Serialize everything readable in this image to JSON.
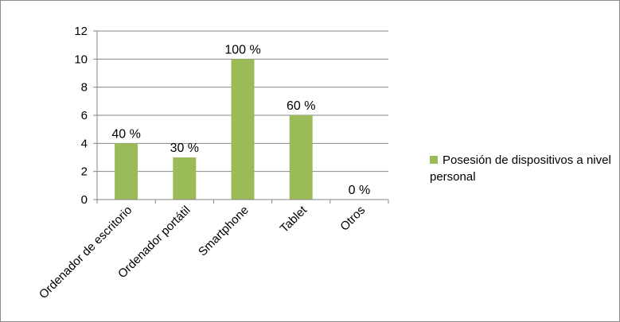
{
  "chart_data": {
    "type": "bar",
    "categories": [
      "Ordenador de escritorio",
      "Ordenador portátil",
      "Smartphone",
      "Tablet",
      "Otros"
    ],
    "series": [
      {
        "name": "Posesión de dispositivos a nivel personal",
        "values": [
          4,
          3,
          10,
          6,
          0
        ],
        "data_labels": [
          "40 %",
          "30 %",
          "100 %",
          "60 %",
          "0 %"
        ]
      }
    ],
    "ylim": [
      0,
      12
    ],
    "yticks": [
      0,
      2,
      4,
      6,
      8,
      10,
      12
    ],
    "grid": true,
    "legend_position": "right",
    "colors": {
      "bar": "#9bbb59",
      "grid": "#868686",
      "axis": "#868686"
    }
  }
}
